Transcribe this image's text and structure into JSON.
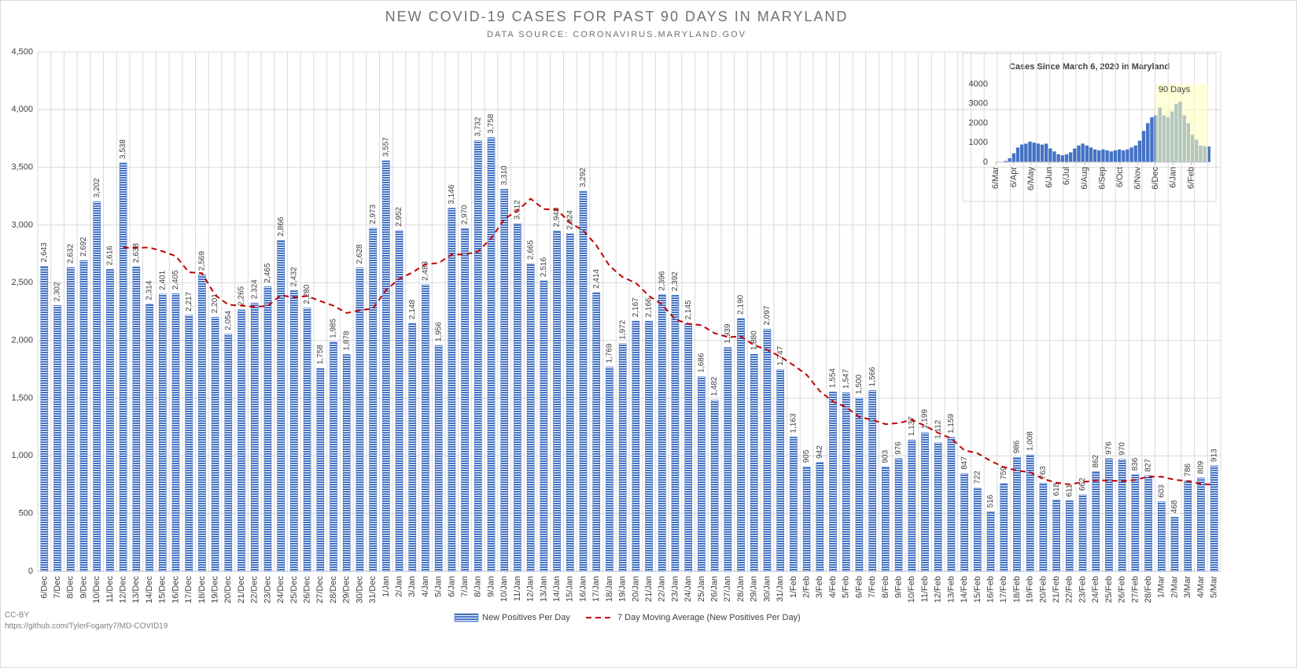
{
  "chart_data": [
    {
      "type": "bar",
      "title": "NEW COVID-19 CASES FOR PAST 90 DAYS IN MARYLAND",
      "subtitle": "DATA SOURCE: CORONAVIRUS.MARYLAND.GOV",
      "categories": [
        "6/Dec",
        "7/Dec",
        "8/Dec",
        "9/Dec",
        "10/Dec",
        "11/Dec",
        "12/Dec",
        "13/Dec",
        "14/Dec",
        "15/Dec",
        "16/Dec",
        "17/Dec",
        "18/Dec",
        "19/Dec",
        "20/Dec",
        "21/Dec",
        "22/Dec",
        "23/Dec",
        "24/Dec",
        "25/Dec",
        "26/Dec",
        "27/Dec",
        "28/Dec",
        "29/Dec",
        "30/Dec",
        "31/Dec",
        "1/Jan",
        "2/Jan",
        "3/Jan",
        "4/Jan",
        "5/Jan",
        "6/Jan",
        "7/Jan",
        "8/Jan",
        "9/Jan",
        "10/Jan",
        "11/Jan",
        "12/Jan",
        "13/Jan",
        "14/Jan",
        "15/Jan",
        "16/Jan",
        "17/Jan",
        "18/Jan",
        "19/Jan",
        "20/Jan",
        "21/Jan",
        "22/Jan",
        "23/Jan",
        "24/Jan",
        "25/Jan",
        "26/Jan",
        "27/Jan",
        "28/Jan",
        "29/Jan",
        "30/Jan",
        "31/Jan",
        "1/Feb",
        "2/Feb",
        "3/Feb",
        "4/Feb",
        "5/Feb",
        "6/Feb",
        "7/Feb",
        "8/Feb",
        "9/Feb",
        "10/Feb",
        "11/Feb",
        "12/Feb",
        "13/Feb",
        "14/Feb",
        "15/Feb",
        "16/Feb",
        "17/Feb",
        "18/Feb",
        "19/Feb",
        "20/Feb",
        "21/Feb",
        "22/Feb",
        "23/Feb",
        "24/Feb",
        "25/Feb",
        "26/Feb",
        "27/Feb",
        "28/Feb",
        "1/Mar",
        "2/Mar",
        "3/Mar",
        "4/Mar",
        "5/Mar"
      ],
      "series": [
        {
          "name": "New Positives Per Day",
          "color": "#4472c4",
          "values": [
            2643,
            2302,
            2632,
            2692,
            3202,
            2616,
            3538,
            2638,
            2314,
            2401,
            2405,
            2217,
            2569,
            2201,
            2054,
            2265,
            2324,
            2465,
            2866,
            2432,
            2280,
            1758,
            1985,
            1878,
            2628,
            2973,
            3557,
            2952,
            2148,
            2483,
            1956,
            3146,
            2970,
            3732,
            3758,
            3310,
            3012,
            2665,
            2516,
            2948,
            2924,
            3292,
            2414,
            1769,
            1972,
            2167,
            2166,
            2396,
            2392,
            2145,
            1686,
            1482,
            1939,
            2190,
            1880,
            2097,
            1747,
            1163,
            905,
            942,
            1554,
            1547,
            1500,
            1566,
            903,
            976,
            1137,
            1199,
            1112,
            1159,
            847,
            722,
            516,
            759,
            986,
            1008,
            763,
            618,
            611,
            662,
            862,
            976,
            970,
            836,
            827,
            603,
            468,
            786,
            809,
            913
          ],
          "value_labels": [
            "2,643",
            "2,302",
            "2,632",
            "2,692",
            "3,202",
            "2,616",
            "3,538",
            "2,638",
            "2,314",
            "2,401",
            "2,405",
            "2,217",
            "2,569",
            "2,201",
            "2,054",
            "2,265",
            "2,324",
            "2,465",
            "2,866",
            "2,432",
            "2,280",
            "1,758",
            "1,985",
            "1,878",
            "2,628",
            "2,973",
            "3,557",
            "2,952",
            "2,148",
            "2,483",
            "1,956",
            "3,146",
            "2,970",
            "3,732",
            "3,758",
            "3,310",
            "3,012",
            "2,665",
            "2,516",
            "2,948",
            "2,924",
            "3,292",
            "2,414",
            "1,769",
            "1,972",
            "2,167",
            "2,166",
            "2,396",
            "2,392",
            "2,145",
            "1,686",
            "1,482",
            "1,939",
            "2,190",
            "1,880",
            "2,097",
            "1,747",
            "1,163",
            "905",
            "942",
            "1,554",
            "1,547",
            "1,500",
            "1,566",
            "903",
            "976",
            "1,137",
            "1,199",
            "1,112",
            "1,159",
            "847",
            "722",
            "516",
            "759",
            "986",
            "1,008",
            "763",
            "618",
            "611",
            "662",
            "862",
            "976",
            "970",
            "836",
            "827",
            "603",
            "468",
            "786",
            "809",
            "913"
          ]
        },
        {
          "name": "7 Day Moving Average (New Positives Per Day)",
          "color": "#c00000",
          "type": "line",
          "dashed": true,
          "values": [
            null,
            null,
            null,
            null,
            null,
            null,
            2804,
            2803,
            2805,
            2772,
            2731,
            2590,
            2583,
            2392,
            2309,
            2302,
            2291,
            2299,
            2392,
            2372,
            2384,
            2341,
            2301,
            2238,
            2261,
            2276,
            2437,
            2533,
            2589,
            2660,
            2671,
            2745,
            2745,
            2770,
            2885,
            3051,
            3126,
            3228,
            3138,
            3134,
            3019,
            2952,
            2824,
            2647,
            2548,
            2498,
            2386,
            2311,
            2182,
            2144,
            2132,
            2062,
            2029,
            2033,
            1959,
            1917,
            1860,
            1785,
            1703,
            1561,
            1470,
            1422,
            1337,
            1311,
            1274,
            1284,
            1312,
            1261,
            1199,
            1150,
            1048,
            1022,
            956,
            902,
            872,
            857,
            800,
            767,
            752,
            772,
            787,
            786,
            780,
            791,
            821,
            819,
            792,
            781,
            757,
            749
          ]
        }
      ],
      "ylim": [
        0,
        4500
      ],
      "yticks": [
        0,
        500,
        {
          "value": 1000,
          "label": "1,000"
        },
        {
          "value": 1500,
          "label": "1,500"
        },
        {
          "value": 2000,
          "label": "2,000"
        },
        {
          "value": 2500,
          "label": "2,500"
        },
        {
          "value": 3000,
          "label": "3,000"
        },
        {
          "value": 3500,
          "label": "3,500"
        },
        {
          "value": 4000,
          "label": "4,000"
        },
        {
          "value": 4500,
          "label": "4,500"
        }
      ],
      "grid": true,
      "legend": "bottom"
    },
    {
      "type": "bar",
      "title": "Cases Since March 6, 2020 in Maryland",
      "annotation": "90 Days",
      "highlight": [
        275,
        366
      ],
      "highlight_color": "#ffffc0",
      "x": [
        0,
        7,
        14,
        21,
        28,
        35,
        42,
        49,
        56,
        63,
        70,
        77,
        84,
        91,
        98,
        105,
        112,
        119,
        126,
        133,
        140,
        147,
        154,
        161,
        168,
        175,
        182,
        189,
        196,
        203,
        210,
        217,
        224,
        231,
        238,
        245,
        252,
        259,
        266,
        273,
        280,
        287,
        294,
        301,
        308,
        315,
        322,
        329,
        336,
        343,
        350,
        357,
        364
      ],
      "series": [
        {
          "color": "#4472c4",
          "values": [
            0,
            10,
            60,
            200,
            450,
            750,
            900,
            950,
            1050,
            1000,
            950,
            900,
            950,
            700,
            550,
            400,
            350,
            400,
            500,
            700,
            850,
            950,
            850,
            750,
            650,
            600,
            650,
            600,
            550,
            600,
            650,
            600,
            650,
            750,
            850,
            1100,
            1600,
            2000,
            2300,
            2400,
            2800,
            2400,
            2300,
            2600,
            3000,
            3100,
            2400,
            2000,
            1400,
            1150,
            850,
            820,
            800
          ]
        }
      ],
      "xlim": [
        0,
        366
      ],
      "xticks": [
        {
          "value": 0,
          "label": "6/Mar"
        },
        {
          "value": 31,
          "label": "6/Apr"
        },
        {
          "value": 61,
          "label": "6/May"
        },
        {
          "value": 92,
          "label": "6/Jun"
        },
        {
          "value": 122,
          "label": "6/Jul"
        },
        {
          "value": 153,
          "label": "6/Aug"
        },
        {
          "value": 184,
          "label": "6/Sep"
        },
        {
          "value": 214,
          "label": "6/Oct"
        },
        {
          "value": 245,
          "label": "6/Nov"
        },
        {
          "value": 275,
          "label": "6/Dec"
        },
        {
          "value": 306,
          "label": "6/Jan"
        },
        {
          "value": 337,
          "label": "6/Feb"
        }
      ],
      "ylim": [
        0,
        4000
      ],
      "yticks": [
        0,
        1000,
        2000,
        3000,
        4000
      ],
      "grid": false
    }
  ],
  "footer": {
    "license": "CC-BY",
    "url": "https://github.com/TylerFogarty7/MD-COVID19"
  }
}
